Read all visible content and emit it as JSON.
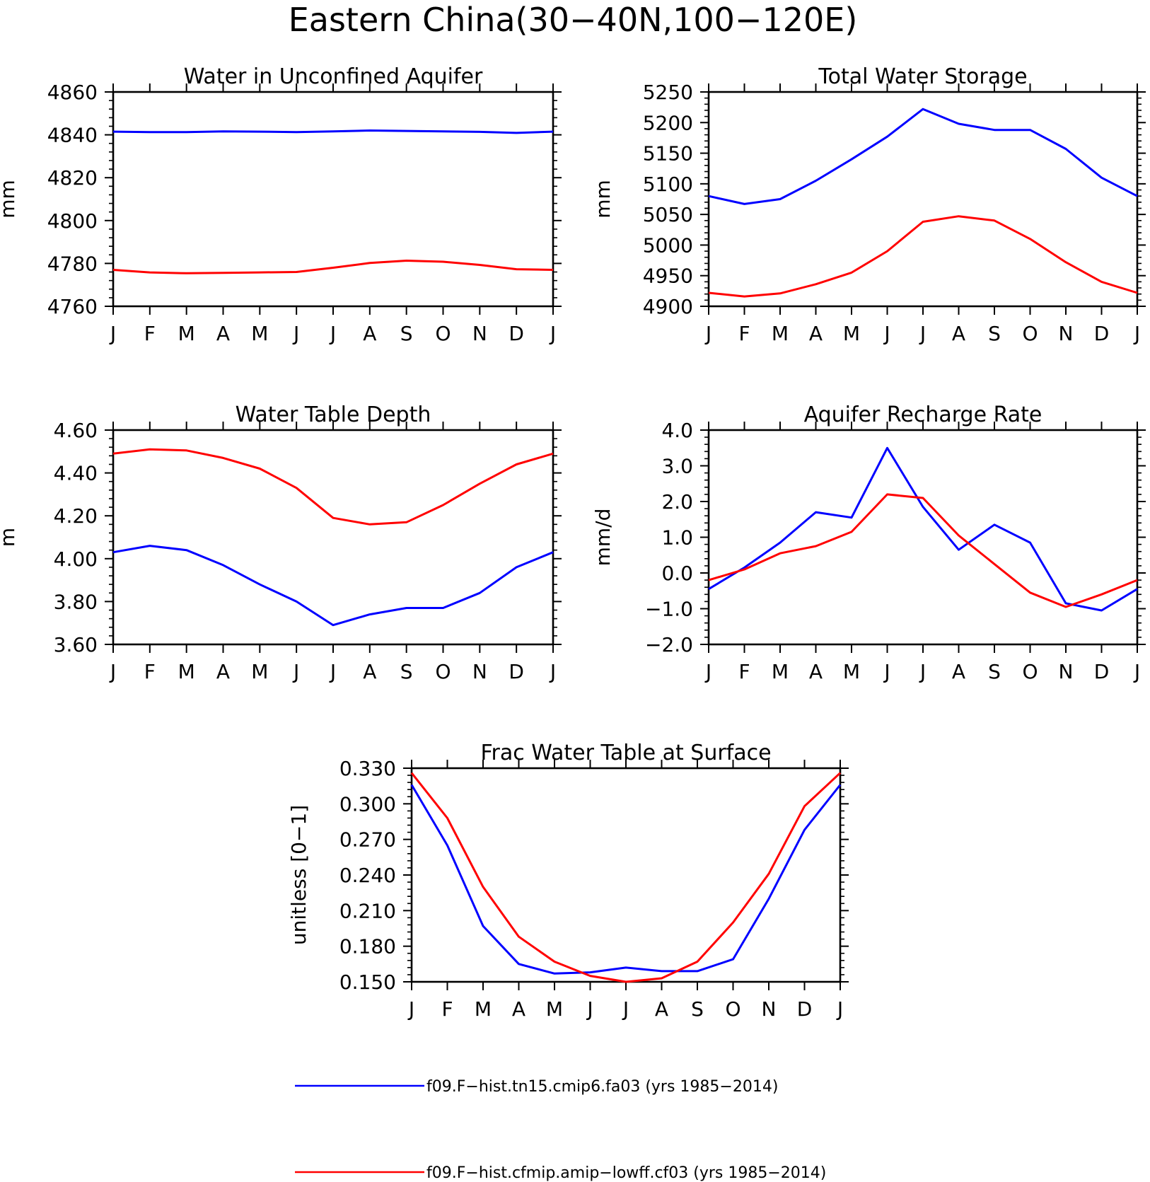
{
  "figure": {
    "title": "Eastern China(30−40N,100−120E)"
  },
  "legend": [
    {
      "label": "f09.F−hist.tn15.cmip6.fa03 (yrs 1985−2014)",
      "color": "#0000ff"
    },
    {
      "label": "f09.F−hist.cfmip.amip−lowff.cf03 (yrs 1985−2014)",
      "color": "#ff0000"
    }
  ],
  "chart_data": [
    {
      "type": "line",
      "title": "Water in Unconfined Aquifer",
      "ylabel": "mm",
      "xlabel": "",
      "categories": [
        "J",
        "F",
        "M",
        "A",
        "M",
        "J",
        "J",
        "A",
        "S",
        "O",
        "N",
        "D",
        "J"
      ],
      "ylim": [
        4760,
        4860
      ],
      "yticks": [
        4760,
        4780,
        4800,
        4820,
        4840,
        4860
      ],
      "ytick_labels": [
        "4760",
        "4780",
        "4800",
        "4820",
        "4840",
        "4860"
      ],
      "grid": false,
      "series": [
        {
          "color": "#0000ff",
          "values": [
            4841.5,
            4841.3,
            4841.3,
            4841.6,
            4841.5,
            4841.3,
            4841.6,
            4842.0,
            4841.8,
            4841.6,
            4841.4,
            4840.9,
            4841.5
          ]
        },
        {
          "color": "#ff0000",
          "values": [
            4777.0,
            4775.8,
            4775.4,
            4775.6,
            4775.8,
            4776.0,
            4778.0,
            4780.2,
            4781.3,
            4780.8,
            4779.3,
            4777.3,
            4777.0
          ]
        }
      ]
    },
    {
      "type": "line",
      "title": "Total Water Storage",
      "ylabel": "mm",
      "xlabel": "",
      "categories": [
        "J",
        "F",
        "M",
        "A",
        "M",
        "J",
        "J",
        "A",
        "S",
        "O",
        "N",
        "D",
        "J"
      ],
      "ylim": [
        4900,
        5250
      ],
      "yticks": [
        4900,
        4950,
        5000,
        5050,
        5100,
        5150,
        5200,
        5250
      ],
      "ytick_labels": [
        "4900",
        "4950",
        "5000",
        "5050",
        "5100",
        "5150",
        "5200",
        "5250"
      ],
      "grid": false,
      "series": [
        {
          "color": "#0000ff",
          "values": [
            5080,
            5067,
            5075,
            5105,
            5140,
            5177,
            5222,
            5198,
            5188,
            5188,
            5157,
            5110,
            5080
          ]
        },
        {
          "color": "#ff0000",
          "values": [
            4922,
            4916,
            4921,
            4936,
            4955,
            4990,
            5038,
            5047,
            5040,
            5010,
            4972,
            4940,
            4922
          ]
        }
      ]
    },
    {
      "type": "line",
      "title": "Water Table Depth",
      "ylabel": "m",
      "xlabel": "",
      "categories": [
        "J",
        "F",
        "M",
        "A",
        "M",
        "J",
        "J",
        "A",
        "S",
        "O",
        "N",
        "D",
        "J"
      ],
      "ylim": [
        3.6,
        4.6
      ],
      "yticks": [
        3.6,
        3.8,
        4.0,
        4.2,
        4.4,
        4.6
      ],
      "ytick_labels": [
        "3.60",
        "3.80",
        "4.00",
        "4.20",
        "4.40",
        "4.60"
      ],
      "grid": false,
      "series": [
        {
          "color": "#0000ff",
          "values": [
            4.03,
            4.06,
            4.04,
            3.97,
            3.88,
            3.8,
            3.69,
            3.74,
            3.77,
            3.77,
            3.84,
            3.96,
            4.03
          ]
        },
        {
          "color": "#ff0000",
          "values": [
            4.49,
            4.51,
            4.505,
            4.47,
            4.42,
            4.33,
            4.19,
            4.16,
            4.17,
            4.25,
            4.35,
            4.44,
            4.49
          ]
        }
      ]
    },
    {
      "type": "line",
      "title": "Aquifer Recharge Rate",
      "ylabel": "mm/d",
      "xlabel": "",
      "categories": [
        "J",
        "F",
        "M",
        "A",
        "M",
        "J",
        "J",
        "A",
        "S",
        "O",
        "N",
        "D",
        "J"
      ],
      "ylim": [
        -2.0,
        4.0
      ],
      "yticks": [
        -2,
        -1,
        0,
        1,
        2,
        3,
        4
      ],
      "ytick_labels": [
        "−2.0",
        "−1.0",
        "0.0",
        "1.0",
        "2.0",
        "3.0",
        "4.0"
      ],
      "grid": false,
      "series": [
        {
          "color": "#0000ff",
          "values": [
            -0.45,
            0.15,
            0.85,
            1.7,
            1.55,
            3.5,
            1.85,
            0.65,
            1.35,
            0.85,
            -0.85,
            -1.05,
            -0.45
          ]
        },
        {
          "color": "#ff0000",
          "values": [
            -0.2,
            0.1,
            0.55,
            0.75,
            1.15,
            2.2,
            2.1,
            1.05,
            0.25,
            -0.55,
            -0.95,
            -0.6,
            -0.2
          ]
        }
      ]
    },
    {
      "type": "line",
      "title": "Frac Water Table at Surface",
      "ylabel": "unitless [0−1]",
      "xlabel": "",
      "categories": [
        "J",
        "F",
        "M",
        "A",
        "M",
        "J",
        "J",
        "A",
        "S",
        "O",
        "N",
        "D",
        "J"
      ],
      "ylim": [
        0.15,
        0.33
      ],
      "yticks": [
        0.15,
        0.18,
        0.21,
        0.24,
        0.27,
        0.3,
        0.33
      ],
      "ytick_labels": [
        "0.150",
        "0.180",
        "0.210",
        "0.240",
        "0.270",
        "0.300",
        "0.330"
      ],
      "grid": false,
      "series": [
        {
          "color": "#0000ff",
          "values": [
            0.316,
            0.265,
            0.197,
            0.165,
            0.157,
            0.158,
            0.162,
            0.159,
            0.159,
            0.169,
            0.22,
            0.278,
            0.316
          ]
        },
        {
          "color": "#ff0000",
          "values": [
            0.326,
            0.288,
            0.23,
            0.188,
            0.167,
            0.155,
            0.15,
            0.153,
            0.167,
            0.2,
            0.241,
            0.298,
            0.326
          ]
        }
      ]
    }
  ]
}
